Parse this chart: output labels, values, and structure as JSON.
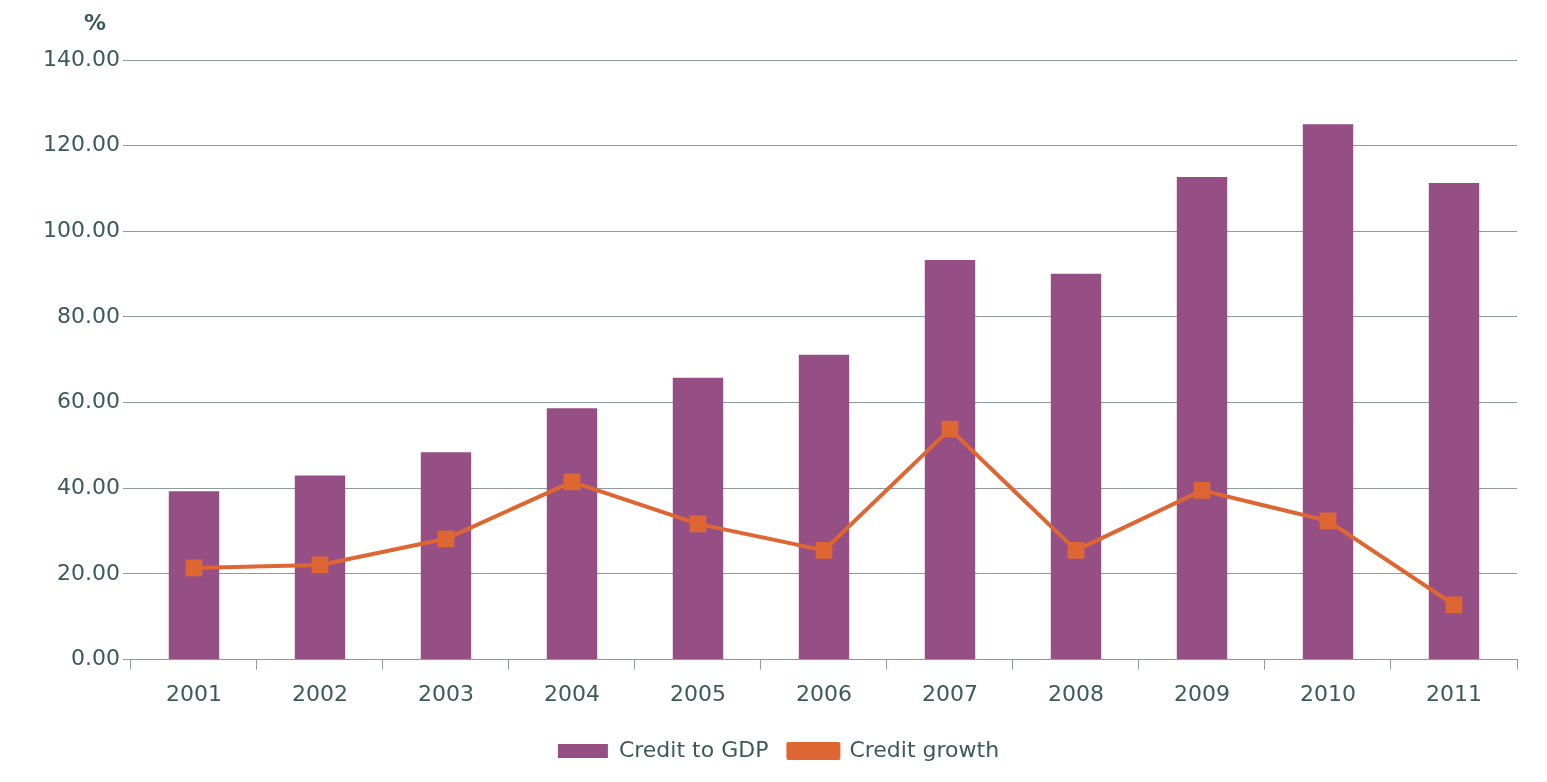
{
  "chart_data": {
    "type": "bar",
    "ylabel": "%",
    "categories": [
      "2001",
      "2002",
      "2003",
      "2004",
      "2005",
      "2006",
      "2007",
      "2008",
      "2009",
      "2010",
      "2011"
    ],
    "series": [
      {
        "name": "Credit to GDP",
        "color": "#954f85",
        "values": [
          39.3,
          43.0,
          48.4,
          58.7,
          65.8,
          71.2,
          93.3,
          90.1,
          112.7,
          125.0,
          111.3
        ]
      },
      {
        "name": "Credit growth",
        "type": "line",
        "color": "#dd6633",
        "values": [
          21.4,
          22.1,
          28.2,
          41.5,
          31.7,
          25.5,
          53.8,
          25.5,
          39.5,
          32.4,
          12.8
        ]
      }
    ],
    "ylim": [
      0,
      140
    ],
    "yticks": [
      {
        "value": 0,
        "label": "0.00"
      },
      {
        "value": 20,
        "label": "20.00"
      },
      {
        "value": 40,
        "label": "40.00"
      },
      {
        "value": 60,
        "label": "60.00"
      },
      {
        "value": 80,
        "label": "80.00"
      },
      {
        "value": 100,
        "label": "100.00"
      },
      {
        "value": 120,
        "label": "120.00"
      },
      {
        "value": 140,
        "label": "140.00"
      }
    ],
    "grid": "y",
    "legend": "bottom",
    "marker": "square",
    "line_style": "solid"
  }
}
